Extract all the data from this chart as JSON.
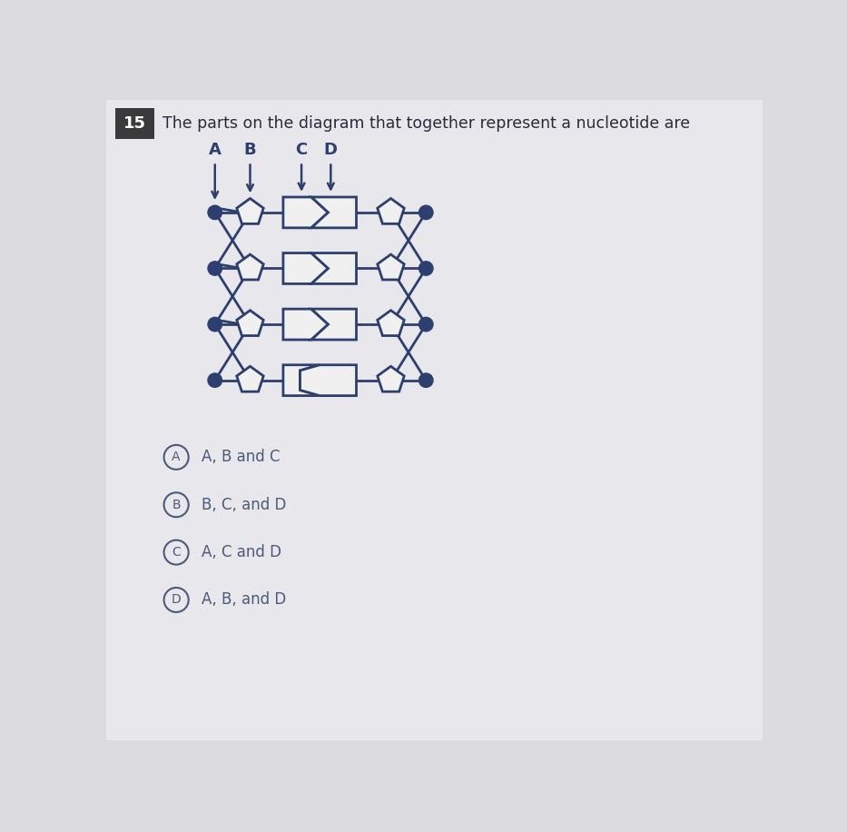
{
  "title": "The parts on the diagram that together represent a nucleotide are",
  "question_num": "15",
  "bg_color": "#dcdce0",
  "content_bg": "#e8e8ec",
  "line_color": "#2d3f6e",
  "dot_fill": "#2d3f6e",
  "shape_fill": "#f0f0f0",
  "label_color": "#2d3f6e",
  "choices": [
    {
      "letter": "A",
      "text": "A, B and C"
    },
    {
      "letter": "B",
      "text": "B, C, and D"
    },
    {
      "letter": "C",
      "text": "A, C and D"
    },
    {
      "letter": "D",
      "text": "A, B, and D"
    }
  ],
  "choice_color": "#4a5a7a",
  "num_rows": 4
}
